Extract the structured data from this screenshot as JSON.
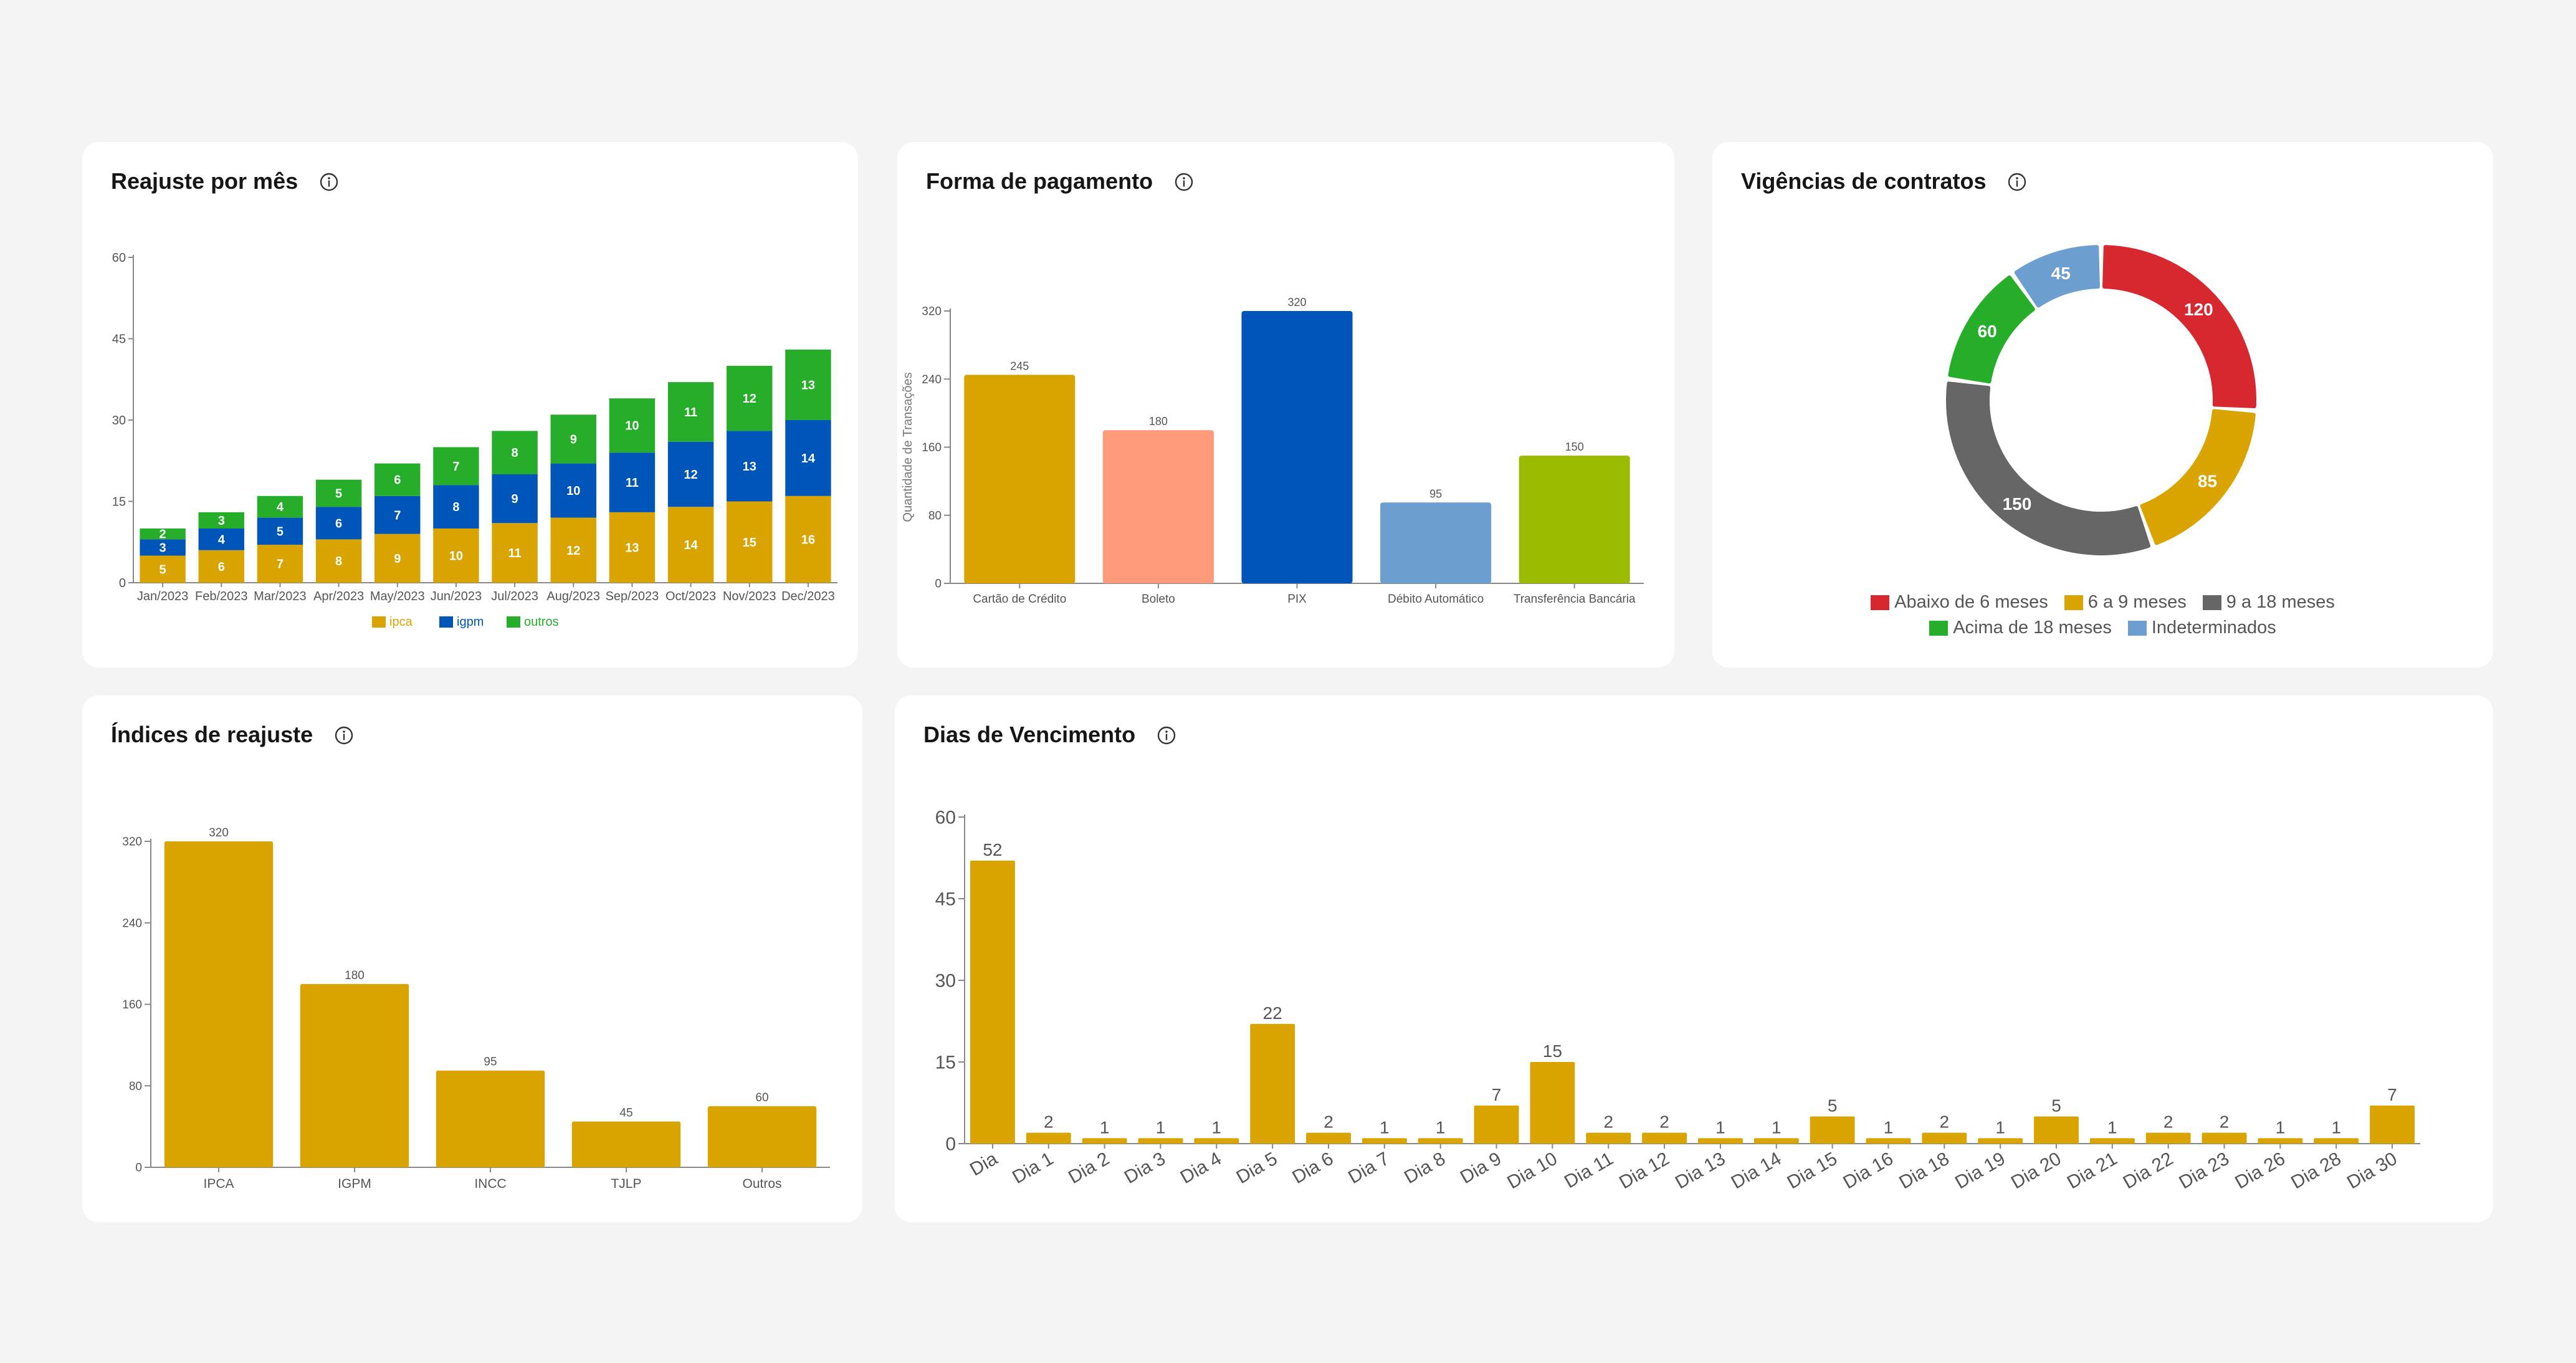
{
  "cards": {
    "reajuste_mes": {
      "title": "Reajuste por mês"
    },
    "forma_pagamento": {
      "title": "Forma de pagamento"
    },
    "vigencias": {
      "title": "Vigências de contratos"
    },
    "indices": {
      "title": "Índices de reajuste"
    },
    "dias": {
      "title": "Dias de Vencimento"
    }
  },
  "icons": {
    "info": "info-circle-icon"
  },
  "colors": {
    "gold": "#D9A400",
    "blue": "#0055B8",
    "green": "#26AE2A",
    "salmon": "#FF9A7A",
    "light_blue": "#6C9ED0",
    "lime": "#9BBB00",
    "red": "#D6282E",
    "gray": "#666666"
  },
  "chart_data": [
    {
      "id": "reajuste_mes",
      "type": "bar",
      "stacked": true,
      "title": "Reajuste por mês",
      "categories": [
        "Jan/2023",
        "Feb/2023",
        "Mar/2023",
        "Apr/2023",
        "May/2023",
        "Jun/2023",
        "Jul/2023",
        "Aug/2023",
        "Sep/2023",
        "Oct/2023",
        "Nov/2023",
        "Dec/2023"
      ],
      "series": [
        {
          "name": "ipca",
          "color": "#D9A400",
          "values": [
            5,
            6,
            7,
            8,
            9,
            10,
            11,
            12,
            13,
            14,
            15,
            16
          ]
        },
        {
          "name": "igpm",
          "color": "#0055B8",
          "values": [
            3,
            4,
            5,
            6,
            7,
            8,
            9,
            10,
            11,
            12,
            13,
            14
          ]
        },
        {
          "name": "outros",
          "color": "#26AE2A",
          "values": [
            2,
            3,
            4,
            5,
            6,
            7,
            8,
            9,
            10,
            11,
            12,
            13
          ]
        }
      ],
      "ylim": [
        0,
        60
      ],
      "yticks": [
        0,
        15,
        30,
        45,
        60
      ],
      "legend": "bottom"
    },
    {
      "id": "forma_pagamento",
      "type": "bar",
      "title": "Forma de pagamento",
      "ylabel": "Quantidade de Transações",
      "categories": [
        "Cartão de Crédito",
        "Boleto",
        "PIX",
        "Débito Automático",
        "Transferência Bancária"
      ],
      "values": [
        245,
        180,
        320,
        95,
        150
      ],
      "colors": [
        "#D9A400",
        "#FF9A7A",
        "#0055B8",
        "#6C9ED0",
        "#9BBB00"
      ],
      "ylim": [
        0,
        320
      ],
      "yticks": [
        0,
        80,
        160,
        240,
        320
      ]
    },
    {
      "id": "vigencias",
      "type": "pie",
      "donut": true,
      "title": "Vigências de contratos",
      "labels": [
        "Abaixo de 6 meses",
        "6 a 9 meses",
        "9 a 18 meses",
        "Acima de 18 meses",
        "Indeterminados"
      ],
      "values": [
        120,
        85,
        150,
        60,
        45
      ],
      "colors": [
        "#D6282E",
        "#D9A400",
        "#666666",
        "#26AE2A",
        "#6C9ED0"
      ],
      "legend": "bottom"
    },
    {
      "id": "indices",
      "type": "bar",
      "title": "Índices de reajuste",
      "categories": [
        "IPCA",
        "IGPM",
        "INCC",
        "TJLP",
        "Outros"
      ],
      "values": [
        320,
        180,
        95,
        45,
        60
      ],
      "color": "#D9A400",
      "ylim": [
        0,
        320
      ],
      "yticks": [
        0,
        80,
        160,
        240,
        320
      ]
    },
    {
      "id": "dias",
      "type": "bar",
      "title": "Dias de Vencimento",
      "categories": [
        "Dia",
        "Dia 1",
        "Dia 2",
        "Dia 3",
        "Dia 4",
        "Dia 5",
        "Dia 6",
        "Dia 7",
        "Dia 8",
        "Dia 9",
        "Dia 10",
        "Dia 11",
        "Dia 12",
        "Dia 13",
        "Dia 14",
        "Dia 15",
        "Dia 16",
        "Dia 18",
        "Dia 19",
        "Dia 20",
        "Dia 21",
        "Dia 22",
        "Dia 23",
        "Dia 26",
        "Dia 28",
        "Dia 30"
      ],
      "values": [
        52,
        2,
        1,
        1,
        1,
        22,
        2,
        1,
        1,
        7,
        15,
        2,
        2,
        1,
        1,
        5,
        1,
        2,
        1,
        5,
        1,
        2,
        2,
        1,
        1,
        7
      ],
      "color": "#D9A400",
      "ylim": [
        0,
        60
      ],
      "yticks": [
        0,
        15,
        30,
        45,
        60
      ]
    }
  ]
}
